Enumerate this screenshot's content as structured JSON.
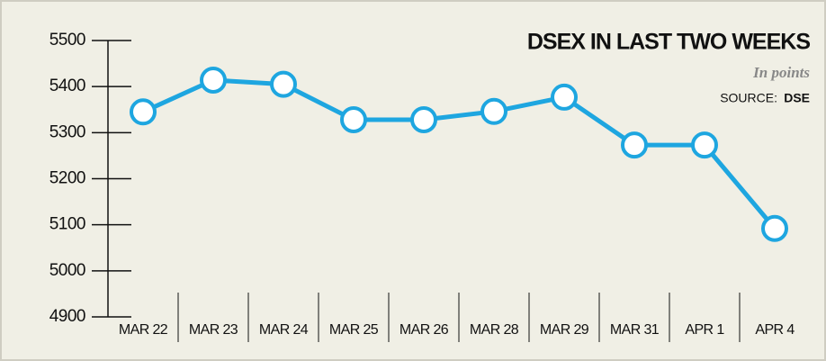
{
  "chart_data": {
    "type": "line",
    "title": "DSEX IN LAST TWO WEEKS",
    "subtitle": "In points",
    "source_label": "SOURCE:",
    "source": "DSE",
    "categories": [
      "MAR 22",
      "MAR 23",
      "MAR 24",
      "MAR 25",
      "MAR 26",
      "MAR 28",
      "MAR 29",
      "MAR 31",
      "APR 1",
      "APR 4"
    ],
    "series": [
      {
        "name": "DSEX",
        "color": "#1ea6e0",
        "values": [
          5345,
          5414,
          5405,
          5328,
          5328,
          5346,
          5377,
          5273,
          5273,
          5092
        ]
      }
    ],
    "ylim": [
      4900,
      5500
    ],
    "yticks": [
      4900,
      5000,
      5100,
      5200,
      5300,
      5400,
      5500
    ]
  }
}
